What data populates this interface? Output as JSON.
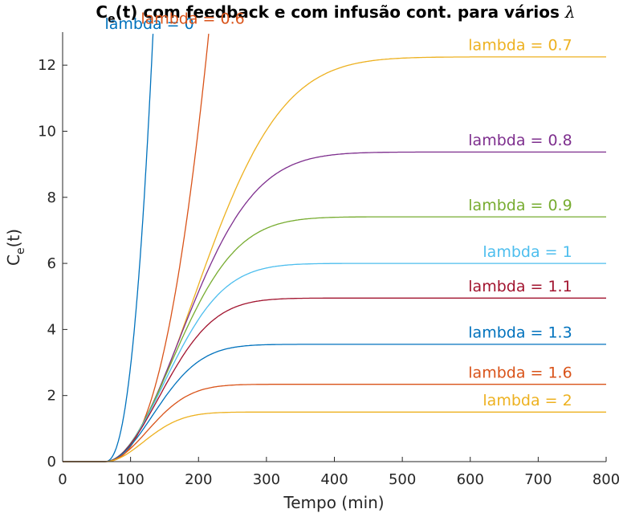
{
  "chart_data": {
    "type": "line",
    "title": "C",
    "title_subscript": "e",
    "title_rest": "(t) com feedback e com infusão cont. para vários ",
    "title_symbol": "λ",
    "xlabel": "Tempo (min)",
    "ylabel": "C",
    "ylabel_subscript": "e",
    "ylabel_rest": "(t)",
    "xlim": [
      0,
      800
    ],
    "ylim": [
      0,
      13
    ],
    "xticks": [
      0,
      100,
      200,
      300,
      400,
      500,
      600,
      700,
      800
    ],
    "yticks": [
      0,
      2,
      4,
      6,
      8,
      10,
      12
    ],
    "grid": false,
    "onset_time": 62,
    "series": [
      {
        "name": "lambda = 0",
        "color": "#0072BD",
        "plateau": null,
        "exit_x": 133,
        "label_x": 62,
        "label_y": 13.1
      },
      {
        "name": "lambda = 0.6",
        "color": "#D95319",
        "plateau": null,
        "exit_x": 215,
        "label_x": 115,
        "label_y": 13.25
      },
      {
        "name": "lambda = 0.7",
        "color": "#EDB120",
        "plateau": 12.25,
        "label_x": 750,
        "label_y": 12.45
      },
      {
        "name": "lambda = 0.8",
        "color": "#7E2F8E",
        "plateau": 9.37,
        "label_x": 750,
        "label_y": 9.57
      },
      {
        "name": "lambda = 0.9",
        "color": "#77AC30",
        "plateau": 7.41,
        "label_x": 750,
        "label_y": 7.61
      },
      {
        "name": "lambda = 1",
        "color": "#4DBEEE",
        "plateau": 6.0,
        "label_x": 750,
        "label_y": 6.2
      },
      {
        "name": "lambda = 1.1",
        "color": "#A2142F",
        "plateau": 4.95,
        "label_x": 750,
        "label_y": 5.15
      },
      {
        "name": "lambda = 1.3",
        "color": "#0072BD",
        "plateau": 3.55,
        "label_x": 750,
        "label_y": 3.75
      },
      {
        "name": "lambda = 1.6",
        "color": "#D95319",
        "plateau": 2.34,
        "label_x": 750,
        "label_y": 2.54
      },
      {
        "name": "lambda = 2",
        "color": "#EDB120",
        "plateau": 1.5,
        "label_x": 750,
        "label_y": 1.7
      }
    ]
  }
}
